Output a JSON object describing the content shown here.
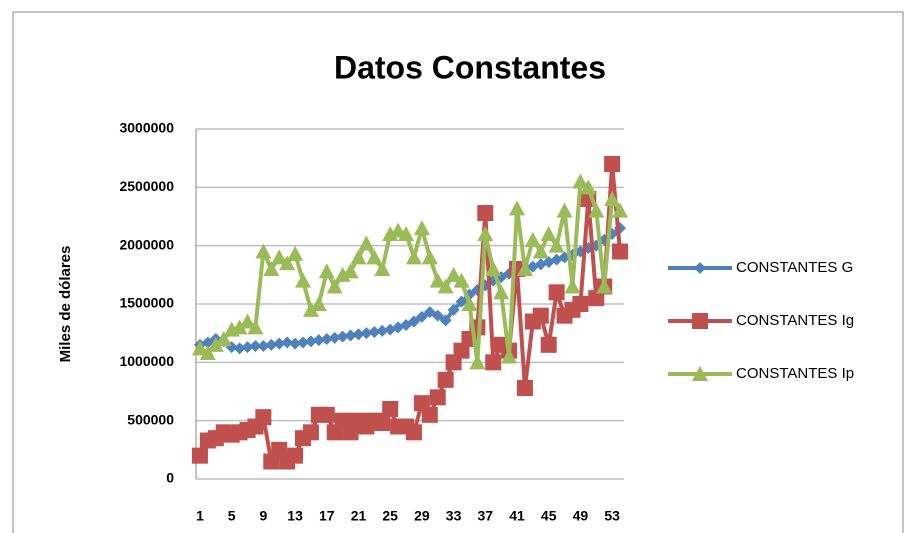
{
  "chart_data": {
    "type": "line",
    "title": "Datos Constantes",
    "y_label": "Miles de dólares",
    "categories": [
      "1",
      null,
      null,
      null,
      "5",
      null,
      null,
      null,
      "9",
      null,
      null,
      null,
      "13",
      null,
      null,
      null,
      "17",
      null,
      null,
      null,
      "21",
      null,
      null,
      null,
      "25",
      null,
      null,
      null,
      "29",
      null,
      null,
      null,
      "33",
      null,
      null,
      null,
      "37",
      null,
      null,
      null,
      "41",
      null,
      null,
      null,
      "45",
      null,
      null,
      null,
      "49",
      null,
      null,
      null,
      "53",
      null
    ],
    "series": [
      {
        "name": "CONSTANTES G",
        "color": "#4f81bd",
        "marker": "diamond",
        "values": [
          1150000,
          1170000,
          1200000,
          1180000,
          1130000,
          1120000,
          1130000,
          1140000,
          1140000,
          1150000,
          1160000,
          1170000,
          1160000,
          1170000,
          1180000,
          1190000,
          1200000,
          1210000,
          1220000,
          1230000,
          1240000,
          1250000,
          1260000,
          1270000,
          1280000,
          1300000,
          1320000,
          1350000,
          1390000,
          1430000,
          1400000,
          1360000,
          1450000,
          1520000,
          1580000,
          1620000,
          1660000,
          1700000,
          1730000,
          1760000,
          1780000,
          1800000,
          1820000,
          1840000,
          1860000,
          1880000,
          1900000,
          1920000,
          1950000,
          1980000,
          2000000,
          2050000,
          2100000,
          2150000
        ]
      },
      {
        "name": "CONSTANTES Ig",
        "color": "#c0504d",
        "marker": "square",
        "values": [
          200000,
          330000,
          350000,
          400000,
          380000,
          400000,
          420000,
          450000,
          530000,
          150000,
          250000,
          150000,
          200000,
          350000,
          400000,
          550000,
          550000,
          400000,
          500000,
          400000,
          500000,
          450000,
          500000,
          480000,
          600000,
          450000,
          450000,
          400000,
          650000,
          550000,
          700000,
          850000,
          1000000,
          1100000,
          1200000,
          1300000,
          2280000,
          1000000,
          1150000,
          1100000,
          1800000,
          780000,
          1350000,
          1400000,
          1150000,
          1600000,
          1400000,
          1450000,
          1500000,
          2400000,
          1550000,
          1650000,
          2700000,
          1950000
        ]
      },
      {
        "name": "CONSTANTES Ip",
        "color": "#9bbb59",
        "marker": "triangle",
        "values": [
          1120000,
          1080000,
          1150000,
          1200000,
          1280000,
          1300000,
          1350000,
          1300000,
          1950000,
          1800000,
          1900000,
          1850000,
          1930000,
          1700000,
          1450000,
          1500000,
          1780000,
          1650000,
          1750000,
          1780000,
          1900000,
          2020000,
          1900000,
          1800000,
          2100000,
          2130000,
          2100000,
          1900000,
          2150000,
          1900000,
          1700000,
          1650000,
          1750000,
          1700000,
          1500000,
          1000000,
          2100000,
          1800000,
          1600000,
          1050000,
          2320000,
          1800000,
          2050000,
          1950000,
          2100000,
          2000000,
          2300000,
          1650000,
          2550000,
          2500000,
          2300000,
          1650000,
          2400000,
          2300000
        ]
      }
    ],
    "ylim": [
      0,
      3000000
    ],
    "yticks": [
      0,
      500000,
      1000000,
      1500000,
      2000000,
      2500000,
      3000000
    ],
    "grid": true,
    "legend": "right"
  }
}
